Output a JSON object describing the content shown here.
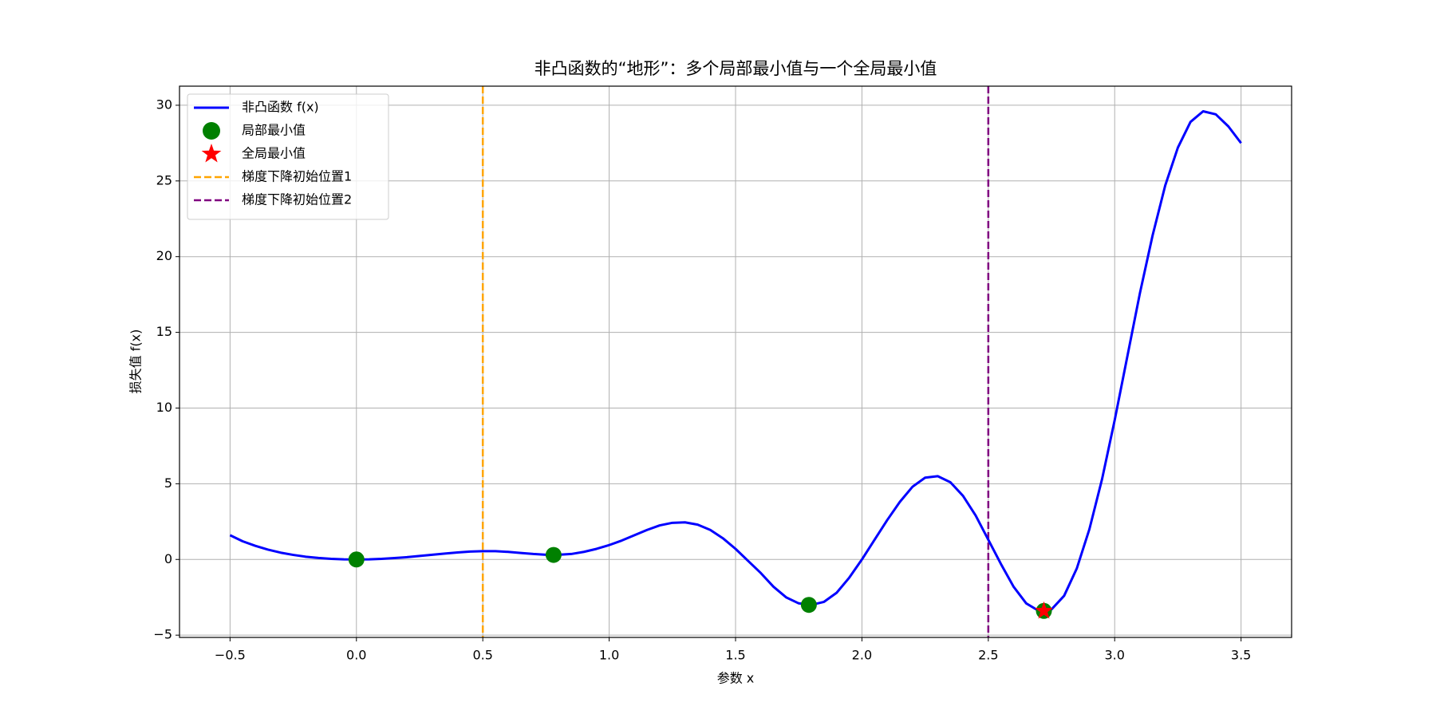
{
  "chart_data": {
    "type": "line",
    "title": "非凸函数的“地形”：多个局部最小值与一个全局最小值",
    "xlabel": "参数 x",
    "ylabel": "损失值 f(x)",
    "xlim": [
      -0.7,
      3.7
    ],
    "ylim": [
      -5.15,
      31.26
    ],
    "xticks": [
      {
        "value": -0.5,
        "label": "−0.5"
      },
      {
        "value": 0,
        "label": "0.0"
      },
      0.5,
      {
        "value": 1,
        "label": "1.0"
      },
      1.5,
      {
        "value": 2,
        "label": "2.0"
      },
      2.5,
      {
        "value": 3,
        "label": "3.0"
      },
      3.5
    ],
    "yticks": [
      {
        "value": -5,
        "label": "−5"
      },
      0,
      5,
      10,
      15,
      20,
      25,
      30
    ],
    "grid": true,
    "legend": "upper left",
    "series": [
      {
        "name": "非凸函数 f(x)",
        "type": "line",
        "color": "#0000ff",
        "x": [
          -0.5,
          -0.45,
          -0.4,
          -0.35,
          -0.3,
          -0.25,
          -0.2,
          -0.15,
          -0.1,
          -0.05,
          0,
          0.05,
          0.1,
          0.15,
          0.2,
          0.25,
          0.3,
          0.35,
          0.4,
          0.45,
          0.5,
          0.55,
          0.6,
          0.65,
          0.7,
          0.75,
          0.8,
          0.85,
          0.9,
          0.95,
          1.0,
          1.05,
          1.1,
          1.15,
          1.2,
          1.25,
          1.3,
          1.35,
          1.4,
          1.45,
          1.5,
          1.55,
          1.6,
          1.65,
          1.7,
          1.75,
          1.8,
          1.85,
          1.9,
          1.95,
          2.0,
          2.05,
          2.1,
          2.15,
          2.2,
          2.25,
          2.3,
          2.35,
          2.4,
          2.45,
          2.5,
          2.55,
          2.6,
          2.65,
          2.7,
          2.75,
          2.8,
          2.85,
          2.9,
          2.95,
          3.0,
          3.05,
          3.1,
          3.15,
          3.2,
          3.25,
          3.3,
          3.35,
          3.4,
          3.45,
          3.5
        ],
        "values": [
          1.6,
          1.2,
          0.9,
          0.65,
          0.45,
          0.3,
          0.18,
          0.1,
          0.04,
          0.01,
          0,
          0.01,
          0.04,
          0.09,
          0.15,
          0.23,
          0.31,
          0.39,
          0.46,
          0.52,
          0.55,
          0.55,
          0.5,
          0.43,
          0.36,
          0.31,
          0.31,
          0.36,
          0.5,
          0.7,
          0.95,
          1.25,
          1.6,
          1.95,
          2.25,
          2.42,
          2.45,
          2.3,
          1.95,
          1.4,
          0.7,
          -0.1,
          -0.9,
          -1.8,
          -2.5,
          -2.9,
          -3.0,
          -2.8,
          -2.2,
          -1.2,
          0.0,
          1.3,
          2.6,
          3.8,
          4.8,
          5.4,
          5.5,
          5.1,
          4.2,
          2.9,
          1.3,
          -0.3,
          -1.8,
          -2.9,
          -3.4,
          -3.3,
          -2.4,
          -0.6,
          2.0,
          5.3,
          9.2,
          13.4,
          17.6,
          21.4,
          24.7,
          27.2,
          28.9,
          29.6,
          29.4,
          28.6,
          27.5
        ]
      },
      {
        "name": "局部最小值",
        "type": "scatter",
        "marker": "circle",
        "color": "#008000",
        "x": [
          0,
          0.78,
          1.79,
          2.72
        ],
        "values": [
          0,
          0.3,
          -3.0,
          -3.4
        ]
      },
      {
        "name": "全局最小值",
        "type": "scatter",
        "marker": "star",
        "color": "#ff0000",
        "x": [
          2.72
        ],
        "values": [
          -3.4
        ]
      },
      {
        "name": "梯度下降初始位置1",
        "type": "vline",
        "color": "#ffa500",
        "x": 0.5
      },
      {
        "name": "梯度下降初始位置2",
        "type": "vline",
        "color": "#800080",
        "x": 2.5
      }
    ]
  }
}
